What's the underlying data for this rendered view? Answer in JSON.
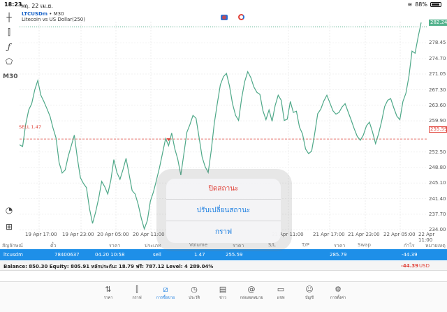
{
  "status_bar": {
    "time": "18:23",
    "date": "พฤ. 22 เม.ย.",
    "battery": "88%",
    "battery_level": 0.88
  },
  "chart": {
    "symbol": "LTCUSDm",
    "timeframe_label": "• M30",
    "description": "Litecoin vs US Dollar(250)",
    "current_price": "282.24",
    "sell_label": "SELL 1.47",
    "sell_price": "255.59",
    "timeframe_tool": "M30"
  },
  "chart_data": {
    "type": "line",
    "x_labels": [
      "19 Apr 17:00",
      "19 Apr 23:00",
      "20 Apr 05:00",
      "20 Apr 11:00",
      "21 Apr 11:00",
      "21 Apr 17:00",
      "21 Apr 23:00",
      "22 Apr 05:00",
      "22 Apr 11:00"
    ],
    "y_ticks": [
      "282.24",
      "278.45",
      "274.70",
      "271.05",
      "267.30",
      "263.60",
      "259.90",
      "255.59",
      "252.50",
      "248.80",
      "245.10",
      "241.40",
      "237.70",
      "234.00"
    ],
    "ylim": [
      232.7,
      283.5
    ],
    "sell_level": 255.59,
    "series": [
      {
        "values": [
          254.2,
          253.8,
          259.0,
          262.5,
          264.0,
          267.3,
          269.5,
          266.0,
          264.5,
          262.8,
          261.0,
          258.2,
          255.8,
          250.0,
          247.5,
          248.2,
          251.5,
          254.0,
          256.5,
          251.0,
          246.4,
          245.0,
          244.0,
          239.0,
          235.5,
          238.2,
          241.5,
          245.5,
          244.2,
          242.5,
          245.8,
          250.7,
          247.6,
          246.0,
          248.3,
          251.0,
          247.2,
          243.3,
          242.5,
          240.0,
          236.8,
          234.2,
          236.2,
          240.8,
          243.0,
          245.8,
          248.8,
          252.2,
          255.7,
          254.0,
          257.0,
          253.3,
          250.8,
          247.0,
          252.0,
          257.2,
          259.0,
          261.2,
          260.5,
          256.0,
          251.3,
          249.0,
          247.6,
          252.8,
          259.3,
          264.0,
          268.5,
          270.4,
          271.2,
          268.2,
          264.0,
          261.2,
          260.0,
          265.3,
          269.2,
          271.6,
          270.2,
          268.0,
          266.7,
          266.2,
          262.3,
          260.2,
          262.5,
          259.8,
          263.5,
          266.0,
          264.8,
          260.0,
          260.3,
          264.5,
          261.9,
          262.2,
          258.4,
          256.8,
          253.2,
          252.1,
          252.7,
          256.8,
          261.6,
          262.7,
          264.6,
          266.0,
          264.2,
          262.3,
          261.5,
          261.9,
          263.2,
          264.0,
          262.0,
          260.1,
          258.0,
          256.2,
          255.3,
          256.5,
          258.7,
          259.6,
          257.3,
          254.5,
          256.8,
          259.8,
          263.3,
          264.8,
          265.2,
          263.0,
          261.0,
          260.2,
          264.5,
          266.5,
          270.6,
          276.5,
          276.0,
          279.8,
          283.3
        ]
      }
    ]
  },
  "table": {
    "headers": [
      "สัญลักษณ์",
      "ตั๋ว",
      "ราคา",
      "ประเภท",
      "Volume",
      "ราคา",
      "S/L",
      "T/P",
      "ราคา",
      "Swap",
      "กำไร",
      "หมายเหตุ"
    ],
    "row": {
      "symbol": "ltcusdm",
      "ticket": "78400637",
      "time": "04.20 10:58",
      "type": "sell",
      "volume": "1.47",
      "open_price": "255.59",
      "price": "285.79",
      "profit": "-44.39"
    }
  },
  "balance": {
    "text": "Balance: 850.30 Equity: 805.91 หลักประกัน: 18.79 ฟรี: 787.12 Level: 4 289.04%",
    "profit": "-44.39",
    "currency": "USD"
  },
  "action_sheet": {
    "close_position": "ปิดสถานะ",
    "modify_position": "ปรับเปลี่ยนสถานะ",
    "chart": "กราฟ"
  },
  "tabs": [
    {
      "label": "ราคา",
      "icon": "arrows-up-down-icon"
    },
    {
      "label": "กราฟ",
      "icon": "candles-icon"
    },
    {
      "label": "การซื้อขาย",
      "icon": "trade-chart-icon"
    },
    {
      "label": "ประวัติ",
      "icon": "history-icon"
    },
    {
      "label": "ข่าว",
      "icon": "news-icon"
    },
    {
      "label": "กล่องจดหมาย",
      "icon": "at-icon"
    },
    {
      "label": "แชท",
      "icon": "chat-icon"
    },
    {
      "label": "บัญชี",
      "icon": "account-icon"
    },
    {
      "label": "การตั้งค่า",
      "icon": "gear-icon"
    }
  ],
  "colors": {
    "line": "#4ea888",
    "accent": "#1a7de0",
    "sell": "#e0433a",
    "row_highlight": "#1e8fe8"
  }
}
